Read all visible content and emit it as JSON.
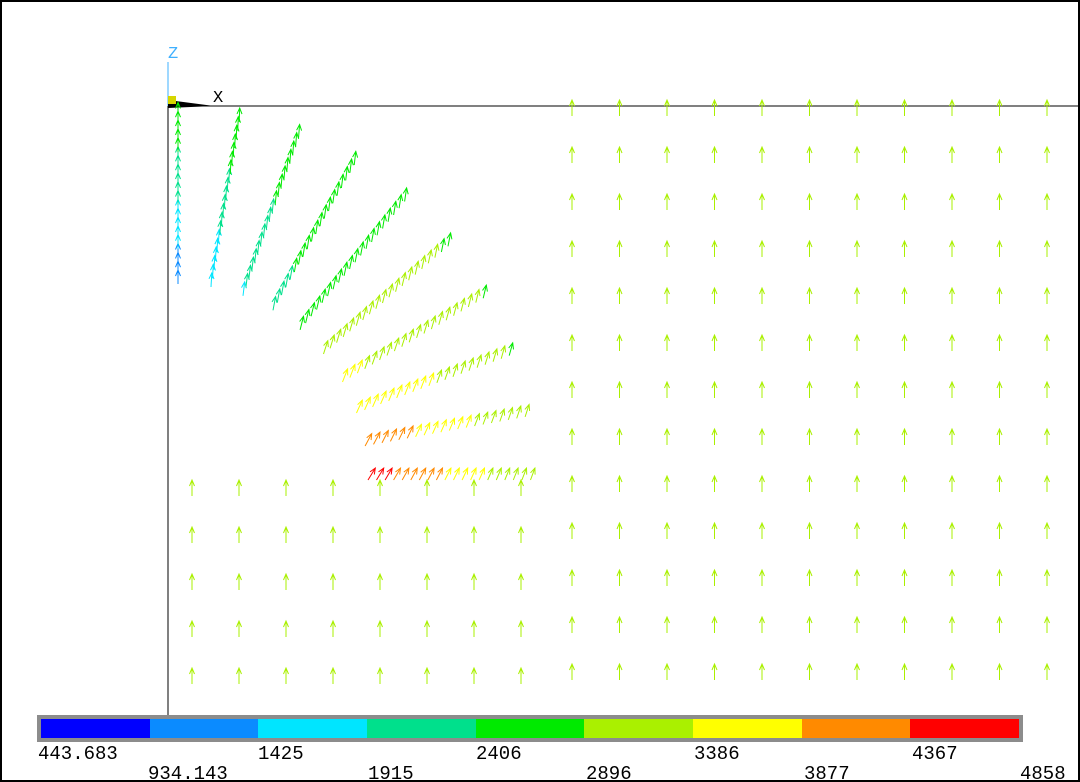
{
  "axis_triad": {
    "x_label": "X",
    "z_label": "Z"
  },
  "colors": {
    "background": "#ffffff",
    "frame_border": "#000000",
    "axis_line": "#000000",
    "legend_border": "#8c8c8c"
  },
  "legend": {
    "colors": [
      "#0000ff",
      "#0b8bff",
      "#00e5ff",
      "#00e08c",
      "#00ea00",
      "#aaf000",
      "#ffff00",
      "#ff8a00",
      "#ff0000"
    ],
    "upper_labels": [
      "443.683",
      "1425",
      "2406",
      "3386",
      "4367"
    ],
    "lower_labels": [
      "934.143",
      "1915",
      "2896",
      "3877",
      "4858"
    ]
  }
}
